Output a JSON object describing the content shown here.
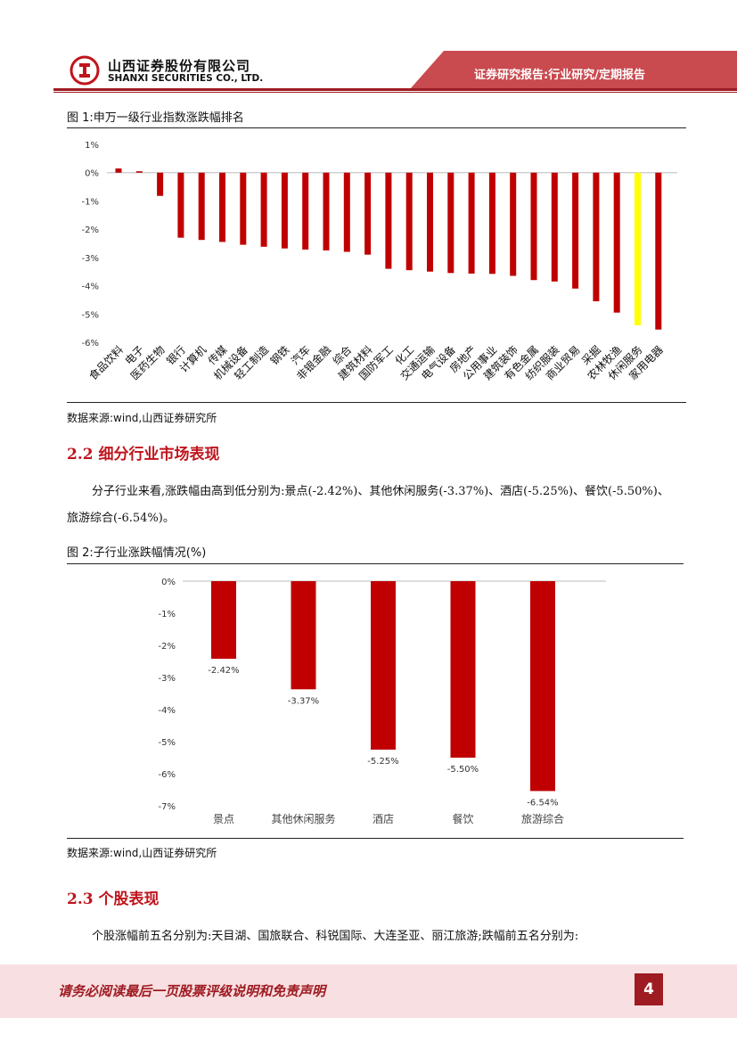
{
  "header": {
    "company_cn": "山西证券股份有限公司",
    "company_en": "SHANXI SECURITIES CO., LTD.",
    "report_tag": "证券研究报告:行业研究/定期报告",
    "logo_icon": "shanxi-securities-logo-icon"
  },
  "figure1": {
    "title": "图 1:申万一级行业指数涨跌幅排名",
    "source": "数据来源:wind,山西证券研究所"
  },
  "section_2_2": {
    "heading": "2.2 细分行业市场表现",
    "paragraph": "分子行业来看,涨跌幅由高到低分别为:景点(-2.42%)、其他休闲服务(-3.37%)、酒店(-5.25%)、餐饮(-5.50%)、旅游综合(-6.54%)。"
  },
  "figure2": {
    "title": "图 2:子行业涨跌幅情况(%)",
    "source": "数据来源:wind,山西证券研究所"
  },
  "section_2_3": {
    "heading": "2.3 个股表现",
    "paragraph": "个股涨幅前五名分别为:天目湖、国旅联合、科锐国际、大连圣亚、丽江旅游;跌幅前五名分别为:"
  },
  "footer": {
    "disclaimer": "请务必阅读最后一页股票评级说明和免责声明",
    "page_number": "4"
  },
  "colors": {
    "bar_red": "#c00000",
    "bar_highlight": "#ffff00",
    "brand_red": "#9e1b22"
  },
  "chart_data": [
    {
      "type": "bar",
      "title": "申万一级行业指数涨跌幅排名",
      "categories": [
        "食品饮料",
        "电子",
        "医药生物",
        "银行",
        "计算机",
        "传媒",
        "机械设备",
        "轻工制造",
        "钢铁",
        "汽车",
        "非银金融",
        "综合",
        "建筑材料",
        "国防军工",
        "化工",
        "交通运输",
        "电气设备",
        "房地产",
        "公用事业",
        "建筑装饰",
        "有色金属",
        "纺织服装",
        "商业贸易",
        "采掘",
        "农林牧渔",
        "休闲服务",
        "家用电器"
      ],
      "values": [
        0.15,
        0.05,
        -0.82,
        -2.3,
        -2.38,
        -2.45,
        -2.55,
        -2.62,
        -2.68,
        -2.72,
        -2.75,
        -2.8,
        -2.9,
        -3.4,
        -3.45,
        -3.5,
        -3.55,
        -3.57,
        -3.58,
        -3.65,
        -3.8,
        -3.85,
        -4.1,
        -4.55,
        -4.95,
        -5.4,
        -5.55
      ],
      "highlight_category": "休闲服务",
      "ylim": [
        -6,
        1
      ],
      "yticks": [
        "1%",
        "0%",
        "-1%",
        "-2%",
        "-3%",
        "-4%",
        "-5%",
        "-6%"
      ],
      "xlabel": "",
      "ylabel": ""
    },
    {
      "type": "bar",
      "title": "子行业涨跌幅情况(%)",
      "categories": [
        "景点",
        "其他休闲服务",
        "酒店",
        "餐饮",
        "旅游综合"
      ],
      "values": [
        -2.42,
        -3.37,
        -5.25,
        -5.5,
        -6.54
      ],
      "labels": [
        "-2.42%",
        "-3.37%",
        "-5.25%",
        "-5.50%",
        "-6.54%"
      ],
      "ylim": [
        -7,
        0
      ],
      "yticks": [
        "0%",
        "-1%",
        "-2%",
        "-3%",
        "-4%",
        "-5%",
        "-6%",
        "-7%"
      ],
      "xlabel": "",
      "ylabel": ""
    }
  ]
}
